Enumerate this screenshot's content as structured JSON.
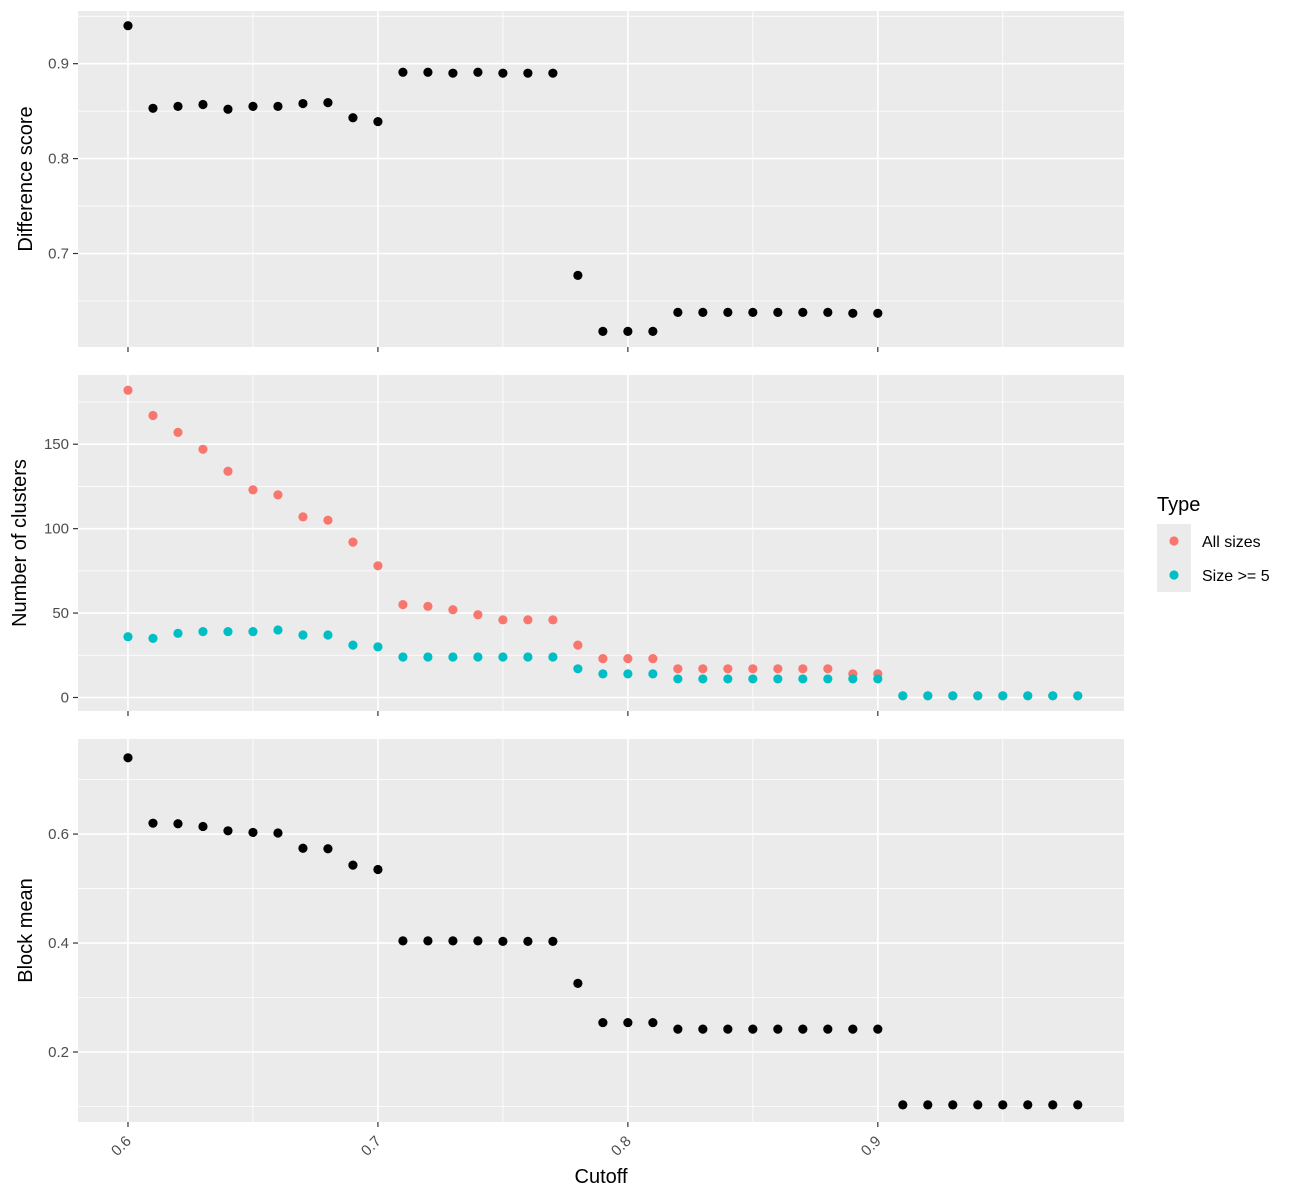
{
  "chart_data": {
    "type": "scatter",
    "xlabel": "Cutoff",
    "xlim": [
      0.58,
      0.9985
    ],
    "x_ticks": [
      0.6,
      0.7,
      0.8,
      0.9
    ],
    "x_tick_labels": [
      "0.6",
      "0.7",
      "0.8",
      "0.9"
    ],
    "grid": true,
    "legend": {
      "title": "Type",
      "placement": "right",
      "entries": [
        {
          "label": "All sizes",
          "color": "#F8766D"
        },
        {
          "label": "Size >= 5",
          "color": "#00BFC4"
        }
      ]
    },
    "panels": [
      {
        "name": "difference-score",
        "ylabel": "Difference score",
        "ylim": [
          0.6015,
          0.9555
        ],
        "y_ticks": [
          0.7,
          0.8,
          0.9
        ],
        "y_tick_labels": [
          "0.7",
          "0.8",
          "0.9"
        ],
        "series": [
          {
            "color": "#000000",
            "points": [
              [
                0.6,
                0.94
              ],
              [
                0.61,
                0.853
              ],
              [
                0.62,
                0.855
              ],
              [
                0.63,
                0.857
              ],
              [
                0.64,
                0.852
              ],
              [
                0.65,
                0.855
              ],
              [
                0.66,
                0.855
              ],
              [
                0.67,
                0.858
              ],
              [
                0.68,
                0.859
              ],
              [
                0.69,
                0.843
              ],
              [
                0.7,
                0.839
              ],
              [
                0.71,
                0.891
              ],
              [
                0.72,
                0.891
              ],
              [
                0.73,
                0.89
              ],
              [
                0.74,
                0.891
              ],
              [
                0.75,
                0.89
              ],
              [
                0.76,
                0.89
              ],
              [
                0.77,
                0.89
              ],
              [
                0.78,
                0.677
              ],
              [
                0.79,
                0.618
              ],
              [
                0.8,
                0.618
              ],
              [
                0.81,
                0.618
              ],
              [
                0.82,
                0.638
              ],
              [
                0.83,
                0.638
              ],
              [
                0.84,
                0.638
              ],
              [
                0.85,
                0.638
              ],
              [
                0.86,
                0.638
              ],
              [
                0.87,
                0.638
              ],
              [
                0.88,
                0.638
              ],
              [
                0.89,
                0.637
              ],
              [
                0.9,
                0.637
              ]
            ]
          }
        ]
      },
      {
        "name": "number-of-clusters",
        "ylabel": "Number of clusters",
        "ylim": [
          -8,
          191
        ],
        "y_ticks": [
          0,
          50,
          100,
          150
        ],
        "y_tick_labels": [
          "0",
          "50",
          "100",
          "150"
        ],
        "series": [
          {
            "name": "All sizes",
            "color": "#F8766D",
            "points": [
              [
                0.6,
                182
              ],
              [
                0.61,
                167
              ],
              [
                0.62,
                157
              ],
              [
                0.63,
                147
              ],
              [
                0.64,
                134
              ],
              [
                0.65,
                123
              ],
              [
                0.66,
                120
              ],
              [
                0.67,
                107
              ],
              [
                0.68,
                105
              ],
              [
                0.69,
                92
              ],
              [
                0.7,
                78
              ],
              [
                0.71,
                55
              ],
              [
                0.72,
                54
              ],
              [
                0.73,
                52
              ],
              [
                0.74,
                49
              ],
              [
                0.75,
                46
              ],
              [
                0.76,
                46
              ],
              [
                0.77,
                46
              ],
              [
                0.78,
                31
              ],
              [
                0.79,
                23
              ],
              [
                0.8,
                23
              ],
              [
                0.81,
                23
              ],
              [
                0.82,
                17
              ],
              [
                0.83,
                17
              ],
              [
                0.84,
                17
              ],
              [
                0.85,
                17
              ],
              [
                0.86,
                17
              ],
              [
                0.87,
                17
              ],
              [
                0.88,
                17
              ],
              [
                0.89,
                14
              ],
              [
                0.9,
                14
              ],
              [
                0.91,
                1
              ],
              [
                0.92,
                1
              ],
              [
                0.93,
                1
              ],
              [
                0.94,
                1
              ],
              [
                0.95,
                1
              ],
              [
                0.96,
                1
              ],
              [
                0.97,
                1
              ],
              [
                0.98,
                1
              ]
            ]
          },
          {
            "name": "Size >= 5",
            "color": "#00BFC4",
            "points": [
              [
                0.6,
                36
              ],
              [
                0.61,
                35
              ],
              [
                0.62,
                38
              ],
              [
                0.63,
                39
              ],
              [
                0.64,
                39
              ],
              [
                0.65,
                39
              ],
              [
                0.66,
                40
              ],
              [
                0.67,
                37
              ],
              [
                0.68,
                37
              ],
              [
                0.69,
                31
              ],
              [
                0.7,
                30
              ],
              [
                0.71,
                24
              ],
              [
                0.72,
                24
              ],
              [
                0.73,
                24
              ],
              [
                0.74,
                24
              ],
              [
                0.75,
                24
              ],
              [
                0.76,
                24
              ],
              [
                0.77,
                24
              ],
              [
                0.78,
                17
              ],
              [
                0.79,
                14
              ],
              [
                0.8,
                14
              ],
              [
                0.81,
                14
              ],
              [
                0.82,
                11
              ],
              [
                0.83,
                11
              ],
              [
                0.84,
                11
              ],
              [
                0.85,
                11
              ],
              [
                0.86,
                11
              ],
              [
                0.87,
                11
              ],
              [
                0.88,
                11
              ],
              [
                0.89,
                11
              ],
              [
                0.9,
                11
              ],
              [
                0.91,
                1
              ],
              [
                0.92,
                1
              ],
              [
                0.93,
                1
              ],
              [
                0.94,
                1
              ],
              [
                0.95,
                1
              ],
              [
                0.96,
                1
              ],
              [
                0.97,
                1
              ],
              [
                0.98,
                1
              ]
            ]
          }
        ]
      },
      {
        "name": "block-mean",
        "ylabel": "Block mean",
        "ylim": [
          0.0715,
          0.7745
        ],
        "y_ticks": [
          0.2,
          0.4,
          0.6
        ],
        "y_tick_labels": [
          "0.2",
          "0.4",
          "0.6"
        ],
        "series": [
          {
            "color": "#000000",
            "points": [
              [
                0.6,
                0.74
              ],
              [
                0.61,
                0.62
              ],
              [
                0.62,
                0.619
              ],
              [
                0.63,
                0.614
              ],
              [
                0.64,
                0.606
              ],
              [
                0.65,
                0.603
              ],
              [
                0.66,
                0.602
              ],
              [
                0.67,
                0.574
              ],
              [
                0.68,
                0.573
              ],
              [
                0.69,
                0.543
              ],
              [
                0.7,
                0.535
              ],
              [
                0.71,
                0.404
              ],
              [
                0.72,
                0.404
              ],
              [
                0.73,
                0.404
              ],
              [
                0.74,
                0.404
              ],
              [
                0.75,
                0.403
              ],
              [
                0.76,
                0.403
              ],
              [
                0.77,
                0.403
              ],
              [
                0.78,
                0.326
              ],
              [
                0.79,
                0.254
              ],
              [
                0.8,
                0.254
              ],
              [
                0.81,
                0.254
              ],
              [
                0.82,
                0.242
              ],
              [
                0.83,
                0.242
              ],
              [
                0.84,
                0.242
              ],
              [
                0.85,
                0.242
              ],
              [
                0.86,
                0.242
              ],
              [
                0.87,
                0.242
              ],
              [
                0.88,
                0.242
              ],
              [
                0.89,
                0.242
              ],
              [
                0.9,
                0.242
              ],
              [
                0.91,
                0.103
              ],
              [
                0.92,
                0.103
              ],
              [
                0.93,
                0.103
              ],
              [
                0.94,
                0.103
              ],
              [
                0.95,
                0.103
              ],
              [
                0.96,
                0.103
              ],
              [
                0.97,
                0.103
              ],
              [
                0.98,
                0.103
              ]
            ]
          }
        ]
      }
    ]
  }
}
